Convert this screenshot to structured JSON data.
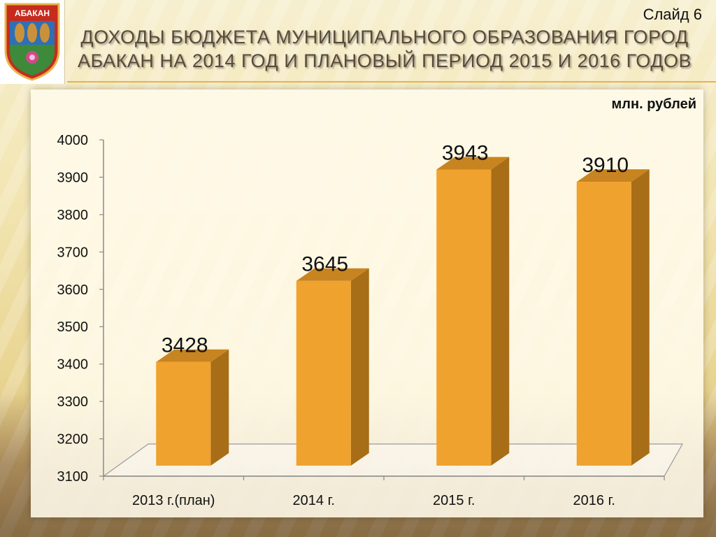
{
  "slide": {
    "number_label": "Слайд 6"
  },
  "title": {
    "line1": "ДОХОДЫ БЮДЖЕТА МУНИЦИПАЛЬНОГО ОБРАЗОВАНИЯ ГОРОД",
    "line2": "АБАКАН НА 2014 ГОД И ПЛАНОВЫЙ ПЕРИОД 2015 И 2016 ГОДОВ"
  },
  "emblem": {
    "text": "АБАКАН"
  },
  "colors": {
    "bar_front": "#f0a22e",
    "bar_side": "#a86d17",
    "bar_top": "#c88420",
    "accent_rule": "#e8b34a"
  },
  "chart_data": {
    "type": "bar",
    "title": "",
    "unit_label": "млн. рублей",
    "categories": [
      "2013 г.(план)",
      "2014 г.",
      "2015 г.",
      "2016 г."
    ],
    "values": [
      3428,
      3645,
      3943,
      3910
    ],
    "value_labels": [
      "3428",
      "3645",
      "3943",
      "3910"
    ],
    "ylim": [
      3100,
      4000
    ],
    "yticks": [
      "3100",
      "3200",
      "3300",
      "3400",
      "3500",
      "3600",
      "3700",
      "3800",
      "3900",
      "4000"
    ],
    "xlabel": "",
    "ylabel": "",
    "grid": false,
    "legend": "none"
  }
}
